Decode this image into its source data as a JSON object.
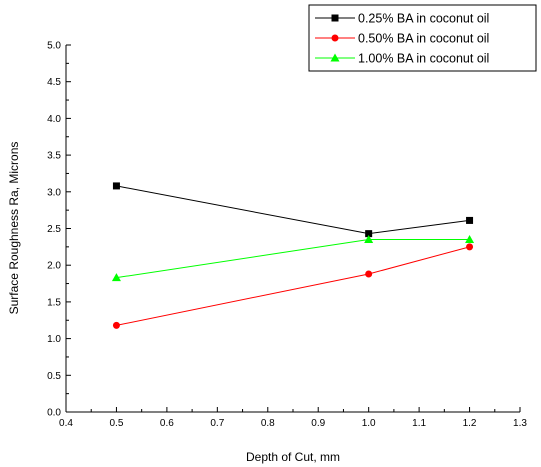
{
  "chart_data": {
    "type": "line",
    "title": "",
    "xlabel": "Depth of Cut, mm",
    "ylabel": "Surface Roughness Ra, Microns",
    "xlim": [
      0.4,
      1.3
    ],
    "ylim": [
      0.0,
      5.0
    ],
    "x_ticks": [
      "0.4",
      "0.5",
      "0.6",
      "0.7",
      "0.8",
      "0.9",
      "1.0",
      "1.1",
      "1.2",
      "1.3"
    ],
    "y_ticks": [
      "0.0",
      "0.5",
      "1.0",
      "1.5",
      "2.0",
      "2.5",
      "3.0",
      "3.5",
      "4.0",
      "4.5",
      "5.0"
    ],
    "grid": false,
    "legend_position": "top-right",
    "x": [
      0.5,
      1.0,
      1.2
    ],
    "series": [
      {
        "name": "0.25% BA in coconut oil",
        "values": [
          3.08,
          2.43,
          2.61
        ],
        "color": "#000000",
        "marker": "square"
      },
      {
        "name": "0.50% BA in coconut oil",
        "values": [
          1.18,
          1.88,
          2.25
        ],
        "color": "#ff0000",
        "marker": "circle"
      },
      {
        "name": "1.00% BA in coconut oil",
        "values": [
          1.83,
          2.35,
          2.35
        ],
        "color": "#00ff00",
        "marker": "triangle"
      }
    ]
  }
}
